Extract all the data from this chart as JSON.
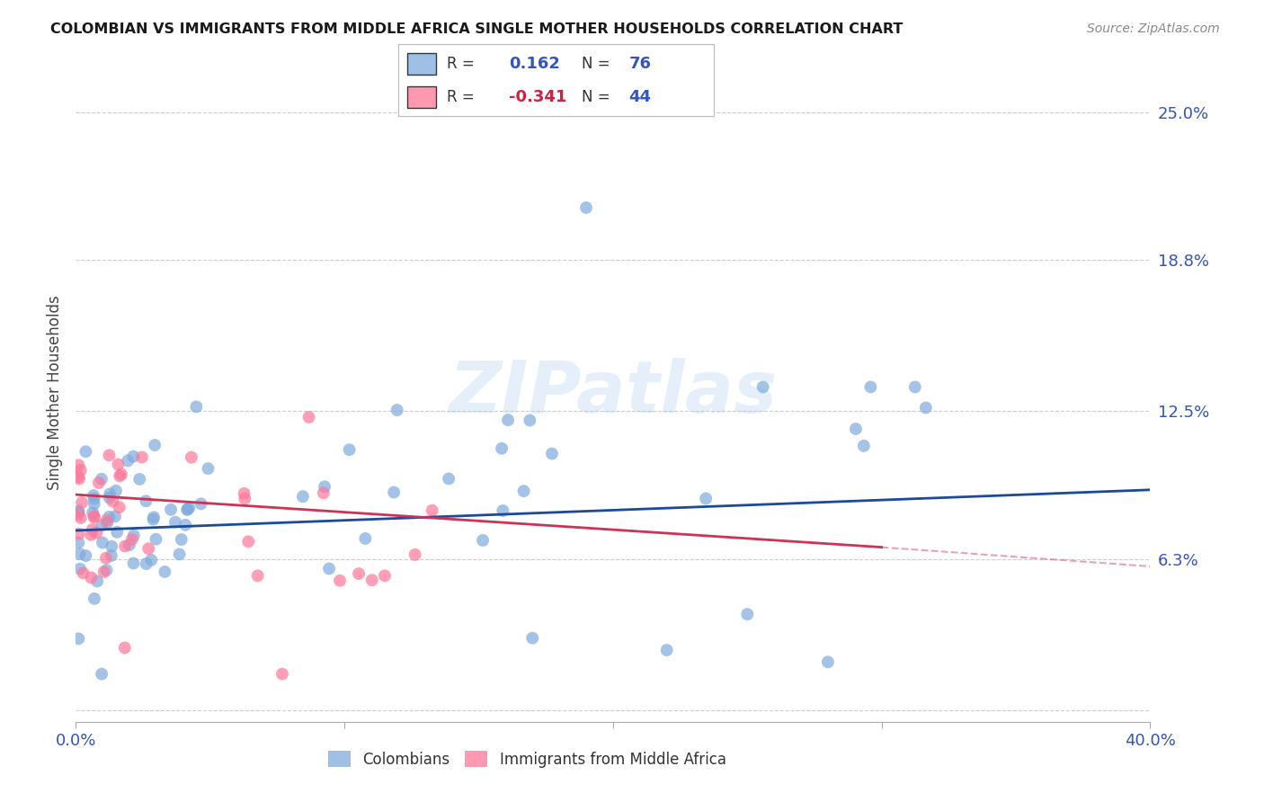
{
  "title": "COLOMBIAN VS IMMIGRANTS FROM MIDDLE AFRICA SINGLE MOTHER HOUSEHOLDS CORRELATION CHART",
  "source": "Source: ZipAtlas.com",
  "ylabel": "Single Mother Households",
  "xlim": [
    0.0,
    0.4
  ],
  "ylim": [
    -0.005,
    0.27
  ],
  "yticks": [
    0.0,
    0.063,
    0.125,
    0.188,
    0.25
  ],
  "ytick_labels": [
    "",
    "6.3%",
    "12.5%",
    "18.8%",
    "25.0%"
  ],
  "xticks": [
    0.0,
    0.1,
    0.2,
    0.3,
    0.4
  ],
  "xtick_labels": [
    "0.0%",
    "",
    "",
    "",
    "40.0%"
  ],
  "grid_color": "#cccccc",
  "background_color": "#ffffff",
  "watermark": "ZIPatlas",
  "color_blue": "#7faadd",
  "color_pink": "#ff7799",
  "color_blue_trend": "#1a4a99",
  "color_pink_trend": "#cc3355",
  "color_axis_val": "#3355bb",
  "color_pink_val": "#cc2244",
  "trend_blue_x0": 0.0,
  "trend_blue_y0": 0.075,
  "trend_blue_x1": 0.4,
  "trend_blue_y1": 0.092,
  "trend_pink_x0": 0.0,
  "trend_pink_y0": 0.09,
  "trend_pink_x1": 0.3,
  "trend_pink_y1": 0.068,
  "trend_pink_dash_x0": 0.3,
  "trend_pink_dash_y0": 0.068,
  "trend_pink_dash_x1": 0.4,
  "trend_pink_dash_y1": 0.06
}
